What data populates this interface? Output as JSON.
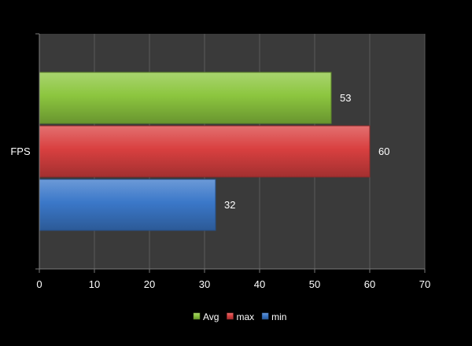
{
  "chart_data": {
    "type": "bar",
    "orientation": "horizontal",
    "categories": [
      "FPS"
    ],
    "series": [
      {
        "name": "Avg",
        "values": [
          53
        ],
        "color": "#8cc63f"
      },
      {
        "name": "max",
        "values": [
          60
        ],
        "color": "#d94040"
      },
      {
        "name": "min",
        "values": [
          32
        ],
        "color": "#3b78c9"
      }
    ],
    "xlim": [
      0,
      70
    ],
    "x_ticks": [
      0,
      10,
      20,
      30,
      40,
      50,
      60,
      70
    ],
    "grid": true,
    "legend_position": "bottom",
    "background_color": "#000000",
    "plot_background_color": "#3a3a3a",
    "gridline_color": "#5a5a5a",
    "text_color": "#ffffff"
  }
}
